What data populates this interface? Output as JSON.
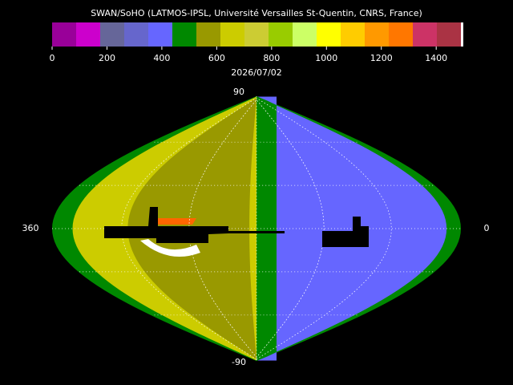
{
  "title": "SWAN/SoHO (LATMOS-IPSL, Université Versailles St-Quentin, CNRS, France)",
  "colorbar": {
    "colors": [
      "#990099",
      "#cc00cc",
      "#666699",
      "#6666cc",
      "#6666ff",
      "#008800",
      "#999900",
      "#cccc00",
      "#cccc33",
      "#99cc00",
      "#ccff66",
      "#ffff00",
      "#ffcc00",
      "#ff9900",
      "#ff7700",
      "#cc3366",
      "#aa3344"
    ],
    "range": [
      0,
      1490
    ],
    "ticks": [
      0,
      200,
      400,
      600,
      800,
      1000,
      1200,
      1400
    ]
  },
  "date": "2026/07/02",
  "map": {
    "top_label": "90",
    "bottom_label": "-90",
    "left_label": "360",
    "right_label": "0"
  }
}
